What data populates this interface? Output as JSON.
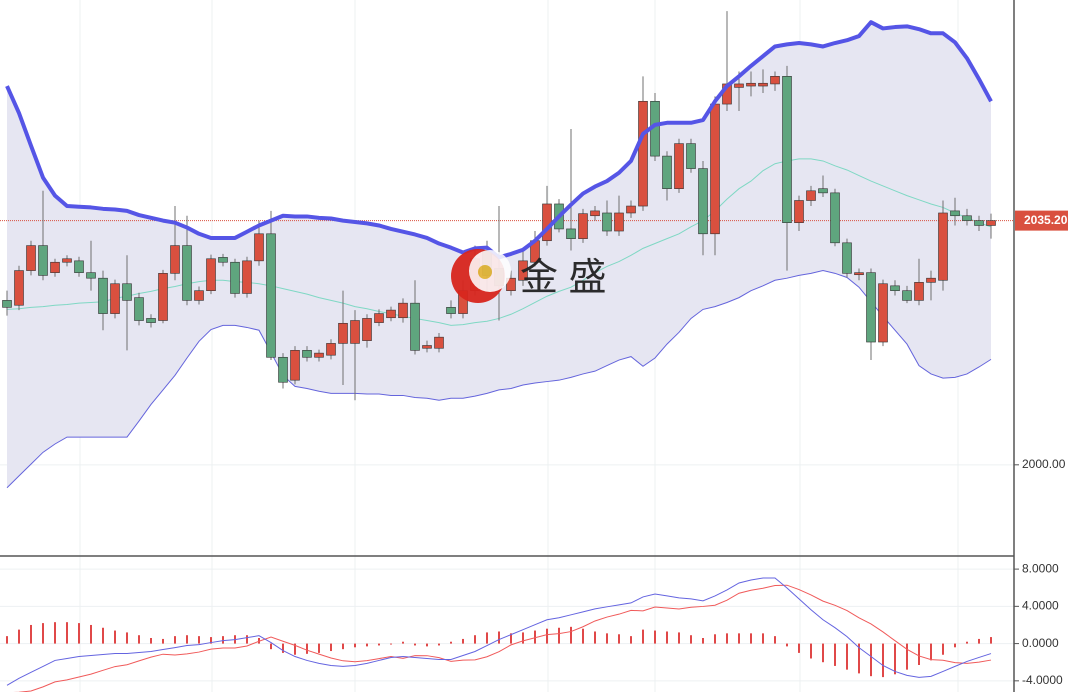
{
  "chart_data": [
    {
      "type": "candlestick",
      "open": [
        2023.7,
        2023.0,
        2028.0,
        2031.6,
        2027.7,
        2029.2,
        2029.4,
        2027.7,
        2026.9,
        2021.8,
        2026.1,
        2024.1,
        2021.1,
        2020.8,
        2027.6,
        2031.6,
        2023.7,
        2025.1,
        2029.9,
        2029.2,
        2024.7,
        2029.4,
        2033.3,
        2015.5,
        2012.2,
        2016.5,
        2015.5,
        2015.8,
        2017.5,
        2017.5,
        2017.9,
        2020.5,
        2021.2,
        2021.2,
        2023.3,
        2016.8,
        2016.8,
        2022.7,
        2021.8,
        2025.1,
        2030.9,
        2028.3,
        2025.1,
        2026.6,
        2029.2,
        2032.3,
        2037.6,
        2034.0,
        2032.6,
        2035.9,
        2036.3,
        2033.7,
        2036.3,
        2037.3,
        2052.4,
        2044.5,
        2039.8,
        2046.3,
        2042.7,
        2033.3,
        2052.0,
        2054.4,
        2054.6,
        2054.6,
        2054.9,
        2056.0,
        2034.9,
        2038.1,
        2039.8,
        2039.2,
        2032.0,
        2027.4,
        2027.7,
        2017.7,
        2025.8,
        2025.1,
        2023.7,
        2026.3,
        2026.6,
        2036.6,
        2035.9,
        2035.2,
        2034.5
      ],
      "high": [
        2025.1,
        2028.7,
        2032.3,
        2039.5,
        2029.7,
        2030.2,
        2030.0,
        2032.3,
        2028.0,
        2026.7,
        2030.2,
        2024.8,
        2021.7,
        2028.1,
        2037.3,
        2035.9,
        2025.7,
        2030.3,
        2030.4,
        2029.7,
        2030.0,
        2035.2,
        2036.6,
        2016.1,
        2017.1,
        2017.1,
        2016.6,
        2018.1,
        2025.1,
        2022.3,
        2021.7,
        2022.4,
        2022.8,
        2024.0,
        2026.6,
        2017.9,
        2019.0,
        2023.7,
        2026.6,
        2031.6,
        2032.3,
        2037.3,
        2028.0,
        2030.9,
        2033.7,
        2040.2,
        2038.3,
        2048.4,
        2036.9,
        2037.3,
        2038.1,
        2038.8,
        2038.1,
        2056.0,
        2053.6,
        2045.2,
        2047.0,
        2047.0,
        2043.8,
        2053.1,
        2065.4,
        2056.7,
        2056.7,
        2057.0,
        2056.7,
        2057.5,
        2038.8,
        2040.2,
        2041.7,
        2039.8,
        2032.6,
        2028.3,
        2028.3,
        2026.7,
        2026.6,
        2025.8,
        2029.7,
        2028.0,
        2038.1,
        2038.5,
        2036.9,
        2035.9,
        2036.2
      ],
      "low": [
        2021.5,
        2022.3,
        2027.3,
        2026.6,
        2027.1,
        2028.6,
        2027.1,
        2025.1,
        2019.4,
        2021.1,
        2016.5,
        2020.1,
        2019.8,
        2020.4,
        2026.6,
        2023.0,
        2023.1,
        2024.6,
        2028.6,
        2024.1,
        2024.1,
        2028.7,
        2015.1,
        2011.0,
        2011.6,
        2014.9,
        2014.9,
        2015.2,
        2011.5,
        2009.3,
        2016.9,
        2020.0,
        2020.7,
        2020.5,
        2015.9,
        2016.2,
        2016.2,
        2021.1,
        2021.1,
        2024.4,
        2025.1,
        2020.8,
        2024.4,
        2025.8,
        2028.6,
        2031.6,
        2033.5,
        2030.9,
        2032.0,
        2035.2,
        2033.0,
        2033.0,
        2035.6,
        2036.6,
        2043.8,
        2038.1,
        2039.2,
        2042.1,
        2030.2,
        2030.2,
        2051.0,
        2051.0,
        2053.1,
        2053.6,
        2053.9,
        2028.0,
        2033.7,
        2037.3,
        2038.6,
        2031.5,
        2027.0,
        2026.6,
        2015.1,
        2017.1,
        2024.4,
        2023.3,
        2023.0,
        2023.7,
        2025.1,
        2034.5,
        2034.5,
        2033.7,
        2032.6
      ],
      "close": [
        2022.7,
        2028.0,
        2031.6,
        2027.3,
        2029.2,
        2029.7,
        2027.7,
        2026.9,
        2021.8,
        2026.1,
        2023.7,
        2020.8,
        2020.5,
        2027.6,
        2031.6,
        2023.7,
        2025.1,
        2029.7,
        2029.2,
        2024.7,
        2029.4,
        2033.3,
        2015.5,
        2011.9,
        2016.5,
        2015.5,
        2016.1,
        2017.5,
        2020.4,
        2020.8,
        2021.1,
        2021.8,
        2022.3,
        2023.3,
        2016.5,
        2017.2,
        2018.4,
        2021.8,
        2025.1,
        2029.7,
        2027.3,
        2025.8,
        2026.9,
        2029.4,
        2032.3,
        2037.6,
        2034.0,
        2032.6,
        2036.2,
        2036.6,
        2033.7,
        2036.3,
        2037.3,
        2052.4,
        2044.5,
        2039.8,
        2046.3,
        2042.7,
        2033.3,
        2052.0,
        2054.9,
        2054.9,
        2055.0,
        2055.0,
        2056.0,
        2034.9,
        2038.1,
        2039.5,
        2039.2,
        2032.0,
        2027.6,
        2027.7,
        2017.7,
        2026.1,
        2025.1,
        2023.7,
        2026.3,
        2026.9,
        2036.3,
        2035.9,
        2035.2,
        2034.5,
        2035.2
      ],
      "upper": [
        2054.6,
        2050.7,
        2046.0,
        2041.4,
        2038.8,
        2037.3,
        2037.2,
        2037.1,
        2036.9,
        2036.8,
        2036.6,
        2036.0,
        2035.6,
        2035.2,
        2034.9,
        2034.2,
        2033.3,
        2032.7,
        2032.7,
        2032.7,
        2033.6,
        2034.5,
        2035.2,
        2035.9,
        2035.8,
        2035.8,
        2035.6,
        2035.5,
        2035.2,
        2035.0,
        2034.8,
        2034.5,
        2034.0,
        2033.6,
        2033.2,
        2032.7,
        2031.9,
        2031.3,
        2030.6,
        2031.2,
        2031.3,
        2029.9,
        2030.4,
        2031.0,
        2032.3,
        2034.0,
        2035.8,
        2037.5,
        2039.1,
        2040.1,
        2040.9,
        2042.1,
        2043.8,
        2047.7,
        2049.0,
        2049.3,
        2049.3,
        2049.3,
        2049.7,
        2052.4,
        2054.6,
        2056.0,
        2057.5,
        2058.9,
        2060.3,
        2060.6,
        2060.8,
        2060.6,
        2060.3,
        2060.8,
        2061.2,
        2061.8,
        2063.8,
        2062.9,
        2063.1,
        2063.2,
        2062.8,
        2062.2,
        2062.2,
        2060.9,
        2058.6,
        2055.6,
        2052.4
      ],
      "middle": [
        2022.4,
        2022.5,
        2022.7,
        2022.8,
        2023.0,
        2023.1,
        2023.3,
        2023.4,
        2023.5,
        2024.0,
        2024.3,
        2024.7,
        2025.0,
        2025.4,
        2025.7,
        2026.1,
        2026.4,
        2026.6,
        2026.6,
        2026.4,
        2026.3,
        2026.1,
        2025.8,
        2025.4,
        2025.0,
        2024.6,
        2024.1,
        2023.7,
        2023.3,
        2022.8,
        2022.5,
        2022.1,
        2021.8,
        2021.4,
        2021.1,
        2020.8,
        2020.5,
        2020.1,
        2020.2,
        2020.5,
        2020.7,
        2021.1,
        2021.7,
        2022.5,
        2023.4,
        2024.3,
        2025.0,
        2025.6,
        2026.6,
        2027.7,
        2028.6,
        2029.3,
        2030.2,
        2031.2,
        2031.9,
        2032.6,
        2033.3,
        2034.3,
        2035.2,
        2036.6,
        2038.3,
        2039.8,
        2040.9,
        2042.4,
        2043.4,
        2043.8,
        2044.1,
        2044.1,
        2043.8,
        2043.1,
        2042.5,
        2041.7,
        2040.9,
        2040.2,
        2039.5,
        2038.8,
        2038.2,
        2037.6,
        2037.1,
        2036.3,
        2035.6,
        2034.9,
        2034.3
      ],
      "lower": [
        1996.7,
        1998.4,
        2000.1,
        2001.8,
        2003.0,
        2004.0,
        2004.0,
        2004.0,
        2004.0,
        2004.0,
        2004.0,
        2006.3,
        2008.7,
        2010.8,
        2012.9,
        2015.4,
        2017.8,
        2019.5,
        2020.1,
        2020.1,
        2019.8,
        2019.4,
        2016.2,
        2012.9,
        2011.3,
        2011.0,
        2010.6,
        2010.3,
        2010.3,
        2010.3,
        2010.2,
        2010.2,
        2010.0,
        2010.0,
        2009.7,
        2009.6,
        2009.3,
        2009.6,
        2009.6,
        2009.9,
        2010.3,
        2010.8,
        2011.0,
        2011.5,
        2011.8,
        2012.0,
        2012.2,
        2012.6,
        2013.1,
        2013.5,
        2014.3,
        2015.1,
        2015.6,
        2014.2,
        2015.4,
        2017.4,
        2019.1,
        2021.1,
        2022.4,
        2022.8,
        2023.4,
        2024.1,
        2025.1,
        2025.8,
        2026.6,
        2026.9,
        2027.3,
        2027.6,
        2028.0,
        2027.6,
        2027.0,
        2025.6,
        2023.5,
        2021.4,
        2019.4,
        2017.4,
        2014.3,
        2013.1,
        2012.5,
        2012.6,
        2013.1,
        2014.1,
        2015.2
      ],
      "up_color": "#d9503f",
      "down_color": "#5fa57e",
      "upper_color": "#5555e6",
      "middle_color": "#7fd8c4",
      "lower_color": "#6464dc",
      "band_fill": "#e6e6f2",
      "ylim": [
        1987,
        2067
      ],
      "yticks": [
        {
          "value": 2000,
          "label": "2000.00"
        }
      ],
      "last_price": {
        "value": 2035.2,
        "label": "2035.20"
      },
      "grid": true,
      "watermark": "金 盛"
    },
    {
      "type": "macd",
      "dif": [
        -4.48,
        -3.73,
        -3.09,
        -2.45,
        -1.81,
        -1.6,
        -1.39,
        -1.28,
        -1.17,
        -1.07,
        -1.07,
        -0.96,
        -0.85,
        -0.64,
        -0.43,
        -0.21,
        -0.11,
        0.11,
        0.32,
        0.43,
        0.64,
        0.85,
        0.11,
        -0.75,
        -1.39,
        -1.81,
        -2.13,
        -2.35,
        -2.45,
        -2.35,
        -2.13,
        -1.81,
        -1.49,
        -1.39,
        -1.49,
        -1.6,
        -1.71,
        -1.71,
        -1.28,
        -0.85,
        -0.21,
        0.43,
        0.96,
        1.49,
        2.03,
        2.56,
        2.77,
        3.09,
        3.41,
        3.73,
        3.95,
        4.16,
        4.37,
        5.01,
        5.33,
        5.12,
        4.91,
        4.8,
        4.59,
        5.12,
        5.76,
        6.51,
        6.83,
        7.04,
        7.04,
        5.97,
        4.8,
        3.63,
        2.56,
        1.71,
        0.75,
        -0.43,
        -1.39,
        -2.35,
        -2.99,
        -3.41,
        -3.63,
        -3.52,
        -2.99,
        -2.45,
        -1.92,
        -1.49,
        -1.07
      ],
      "dea": [
        -5.28,
        -5.23,
        -5.09,
        -4.65,
        -4.11,
        -3.9,
        -3.59,
        -3.28,
        -2.87,
        -2.47,
        -2.27,
        -1.86,
        -1.45,
        -1.14,
        -1.23,
        -1.11,
        -0.91,
        -0.59,
        -0.48,
        -0.47,
        -0.26,
        0.25,
        0.71,
        0.25,
        -0.19,
        -0.71,
        -1.13,
        -1.55,
        -1.85,
        -1.95,
        -1.83,
        -1.61,
        -1.39,
        -1.59,
        -1.29,
        -1.3,
        -1.51,
        -1.91,
        -1.78,
        -1.75,
        -1.41,
        -0.87,
        -0.14,
        0.29,
        0.63,
        0.96,
        1.07,
        1.29,
        1.81,
        2.43,
        2.85,
        3.16,
        3.57,
        3.51,
        3.93,
        3.82,
        3.71,
        3.9,
        3.99,
        4.12,
        4.66,
        5.41,
        5.73,
        5.94,
        6.24,
        6.27,
        5.8,
        5.23,
        4.56,
        4.11,
        3.55,
        2.77,
        2.11,
        1.25,
        0.31,
        -0.61,
        -1.33,
        -1.72,
        -1.79,
        -2.05,
        -2.12,
        -1.99,
        -1.77
      ],
      "hist": [
        0.8,
        1.5,
        2.0,
        2.2,
        2.3,
        2.3,
        2.2,
        2.0,
        1.7,
        1.4,
        1.2,
        0.9,
        0.6,
        0.5,
        0.8,
        0.9,
        0.8,
        0.7,
        0.8,
        0.9,
        0.9,
        0.6,
        -0.6,
        -1.0,
        -1.2,
        -1.1,
        -1.0,
        -0.8,
        -0.6,
        -0.4,
        -0.3,
        -0.2,
        -0.1,
        0.2,
        -0.2,
        -0.3,
        -0.2,
        0.2,
        0.5,
        0.9,
        1.2,
        1.3,
        1.1,
        1.2,
        1.4,
        1.6,
        1.7,
        1.8,
        1.6,
        1.3,
        1.1,
        1.0,
        0.8,
        1.5,
        1.4,
        1.3,
        1.2,
        0.9,
        0.6,
        1.0,
        1.1,
        1.1,
        1.1,
        1.1,
        0.8,
        -0.3,
        -1.0,
        -1.6,
        -2.0,
        -2.4,
        -2.8,
        -3.2,
        -3.5,
        -3.6,
        -3.3,
        -2.8,
        -2.3,
        -1.8,
        -1.2,
        -0.4,
        0.2,
        0.5,
        0.7
      ],
      "dif_color": "#6464e0",
      "dea_color": "#f05a5a",
      "hist_color": "#e04848",
      "ylim": [
        -5.2,
        9.3
      ],
      "yticks": [
        {
          "value": 8,
          "label": "8.0000"
        },
        {
          "value": 4,
          "label": "4.0000"
        },
        {
          "value": 0,
          "label": "0.0000"
        },
        {
          "value": -4,
          "label": "-4.0000"
        }
      ],
      "grid": true
    }
  ]
}
